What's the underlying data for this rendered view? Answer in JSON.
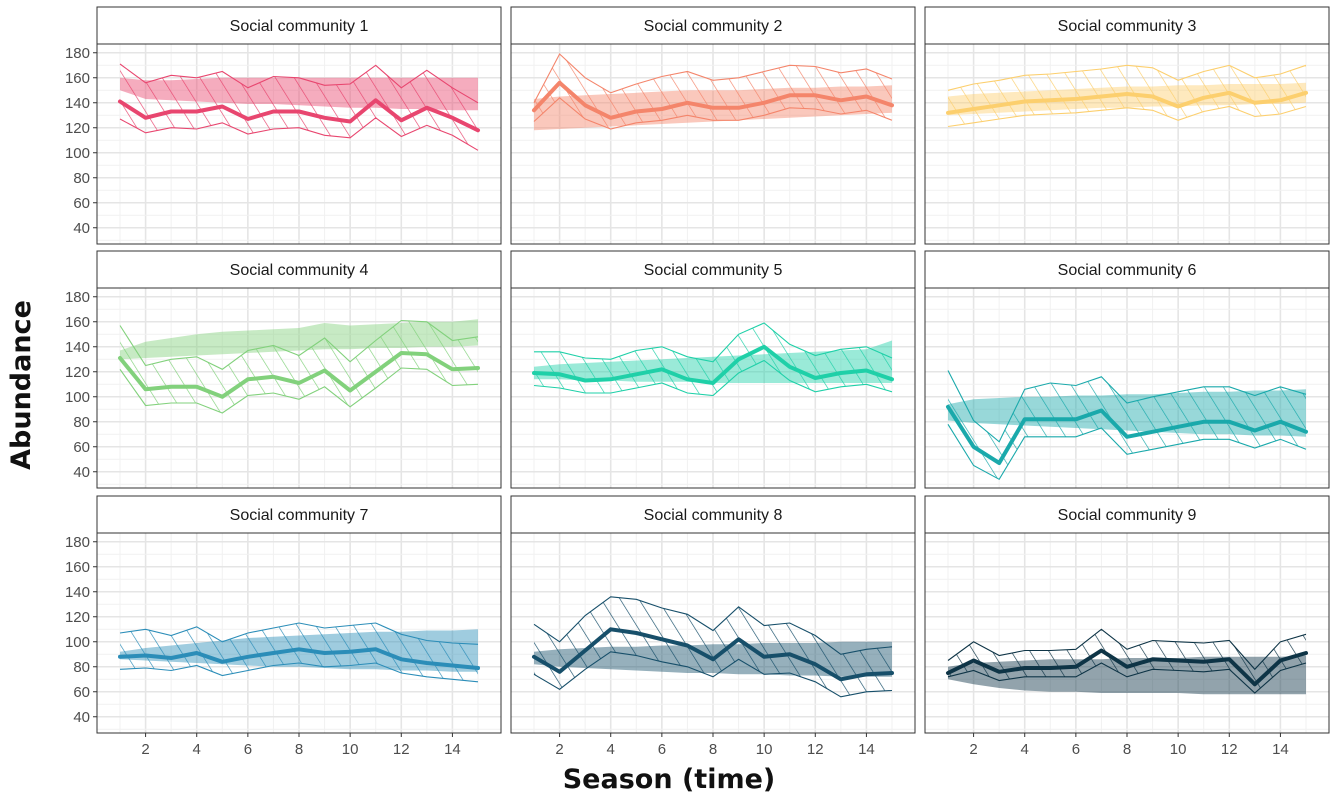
{
  "chart_data": {
    "type": "line",
    "xlabel": "Season (time)",
    "ylabel": "Abundance",
    "xlim": [
      0.1,
      15.9
    ],
    "ylim": [
      27,
      187
    ],
    "x_ticks": [
      2,
      4,
      6,
      8,
      10,
      12,
      14
    ],
    "y_ticks": [
      40,
      60,
      80,
      100,
      120,
      140,
      160,
      180
    ],
    "x": [
      1,
      2,
      3,
      4,
      5,
      6,
      7,
      8,
      9,
      10,
      11,
      12,
      13,
      14,
      15
    ],
    "grid": true,
    "legend": "none",
    "panels": [
      {
        "title": "Social community 1",
        "color": "#e8466f",
        "mean": [
          141,
          128,
          133,
          133,
          137,
          127,
          133,
          133,
          128,
          125,
          142,
          126,
          136,
          128,
          118
        ],
        "hatch_lower": [
          127,
          116,
          120,
          119,
          124,
          115,
          119,
          120,
          114,
          112,
          128,
          113,
          122,
          114,
          102
        ],
        "hatch_upper": [
          171,
          156,
          162,
          160,
          165,
          152,
          161,
          160,
          154,
          155,
          170,
          152,
          166,
          152,
          140
        ],
        "shaded_lower": [
          150,
          143,
          142,
          141,
          140,
          139,
          139,
          138,
          137,
          136,
          136,
          135,
          135,
          134,
          134
        ],
        "shaded_upper": [
          160,
          158,
          158,
          159,
          160,
          160,
          160,
          160,
          160,
          160,
          160,
          160,
          160,
          160,
          160
        ]
      },
      {
        "title": "Social community 2",
        "color": "#f4856b",
        "mean": [
          134,
          156,
          138,
          128,
          133,
          135,
          140,
          136,
          136,
          140,
          146,
          146,
          142,
          145,
          138
        ],
        "hatch_lower": [
          125,
          144,
          127,
          119,
          124,
          126,
          130,
          126,
          126,
          130,
          136,
          135,
          131,
          134,
          126
        ],
        "hatch_upper": [
          140,
          179,
          160,
          148,
          155,
          161,
          165,
          158,
          160,
          165,
          170,
          169,
          164,
          167,
          159
        ],
        "shaded_lower": [
          118,
          119,
          120,
          121,
          122,
          123,
          124,
          125,
          126,
          127,
          128,
          129,
          130,
          131,
          132
        ],
        "shaded_upper": [
          143,
          145,
          146,
          147,
          148,
          149,
          150,
          150,
          150,
          151,
          152,
          152,
          153,
          153,
          154
        ]
      },
      {
        "title": "Social community 3",
        "color": "#fccf6e",
        "mean": [
          132,
          135,
          138,
          141,
          142,
          143,
          145,
          147,
          145,
          137,
          144,
          148,
          140,
          142,
          148
        ],
        "hatch_lower": [
          121,
          124,
          127,
          130,
          131,
          132,
          134,
          136,
          134,
          126,
          133,
          137,
          129,
          131,
          137
        ],
        "hatch_upper": [
          150,
          155,
          158,
          162,
          163,
          165,
          167,
          170,
          168,
          158,
          165,
          170,
          160,
          163,
          170
        ],
        "shaded_lower": [
          130,
          131,
          132,
          133,
          134,
          135,
          136,
          136,
          137,
          137,
          138,
          138,
          139,
          139,
          140
        ],
        "shaded_upper": [
          145,
          147,
          148,
          149,
          150,
          151,
          152,
          153,
          153,
          154,
          154,
          155,
          155,
          155,
          156
        ]
      },
      {
        "title": "Social community 4",
        "color": "#82d17c",
        "mean": [
          131,
          106,
          108,
          108,
          100,
          114,
          116,
          111,
          121,
          105,
          120,
          135,
          134,
          122,
          123
        ],
        "hatch_lower": [
          122,
          93,
          95,
          95,
          87,
          101,
          103,
          98,
          108,
          92,
          107,
          123,
          122,
          109,
          110
        ],
        "hatch_upper": [
          157,
          125,
          130,
          132,
          122,
          137,
          141,
          133,
          147,
          128,
          145,
          161,
          160,
          145,
          148
        ],
        "shaded_lower": [
          130,
          131,
          132,
          133,
          134,
          135,
          136,
          137,
          138,
          138,
          139,
          139,
          140,
          140,
          141
        ],
        "shaded_upper": [
          137,
          144,
          147,
          150,
          152,
          153,
          154,
          155,
          159,
          157,
          158,
          159,
          160,
          160,
          162
        ]
      },
      {
        "title": "Social community 5",
        "color": "#1fd0a8",
        "mean": [
          119,
          118,
          113,
          114,
          118,
          122,
          114,
          111,
          130,
          140,
          124,
          115,
          119,
          121,
          114
        ],
        "hatch_lower": [
          109,
          107,
          103,
          103,
          107,
          111,
          103,
          101,
          119,
          129,
          113,
          104,
          108,
          110,
          104
        ],
        "hatch_upper": [
          136,
          136,
          131,
          130,
          137,
          140,
          132,
          128,
          150,
          159,
          142,
          133,
          138,
          140,
          131
        ],
        "shaded_lower": [
          114,
          114,
          113,
          113,
          112,
          112,
          112,
          111,
          111,
          111,
          111,
          111,
          111,
          111,
          111
        ],
        "shaded_upper": [
          124,
          126,
          127,
          128,
          129,
          130,
          131,
          132,
          133,
          134,
          135,
          136,
          137,
          138,
          145
        ]
      },
      {
        "title": "Social community 6",
        "color": "#1aa9ab",
        "mean": [
          92,
          60,
          47,
          82,
          82,
          82,
          89,
          68,
          72,
          76,
          80,
          80,
          73,
          80,
          72
        ],
        "hatch_lower": [
          78,
          45,
          34,
          68,
          68,
          68,
          75,
          54,
          58,
          62,
          66,
          66,
          59,
          66,
          58
        ],
        "hatch_upper": [
          121,
          81,
          64,
          106,
          111,
          109,
          116,
          95,
          100,
          104,
          108,
          108,
          101,
          108,
          102
        ],
        "shaded_lower": [
          81,
          79,
          78,
          77,
          76,
          75,
          74,
          73,
          72,
          71,
          70,
          70,
          69,
          69,
          68
        ],
        "shaded_upper": [
          94,
          98,
          99,
          100,
          100,
          101,
          101,
          102,
          102,
          103,
          104,
          104,
          105,
          105,
          106
        ]
      },
      {
        "title": "Social community 7",
        "color": "#2b8db8",
        "mean": [
          88,
          89,
          87,
          91,
          84,
          88,
          91,
          94,
          91,
          92,
          94,
          86,
          83,
          81,
          79
        ],
        "hatch_lower": [
          78,
          79,
          77,
          81,
          73,
          77,
          81,
          83,
          80,
          81,
          83,
          75,
          72,
          70,
          68
        ],
        "hatch_upper": [
          107,
          110,
          105,
          112,
          100,
          107,
          111,
          115,
          111,
          113,
          115,
          106,
          101,
          99,
          98
        ],
        "shaded_lower": [
          86,
          85,
          84,
          83,
          82,
          81,
          80,
          80,
          79,
          78,
          78,
          77,
          77,
          76,
          76
        ],
        "shaded_upper": [
          92,
          95,
          97,
          99,
          101,
          103,
          104,
          105,
          106,
          107,
          108,
          108,
          109,
          109,
          110
        ]
      },
      {
        "title": "Social community 8",
        "color": "#174f6a",
        "mean": [
          88,
          76,
          93,
          110,
          107,
          102,
          97,
          86,
          102,
          88,
          90,
          82,
          70,
          74,
          75
        ],
        "hatch_lower": [
          74,
          62,
          78,
          92,
          89,
          84,
          80,
          72,
          86,
          74,
          75,
          68,
          56,
          60,
          61
        ],
        "hatch_upper": [
          114,
          100,
          121,
          136,
          134,
          127,
          122,
          109,
          128,
          113,
          115,
          105,
          90,
          94,
          96
        ],
        "shaded_lower": [
          82,
          80,
          79,
          78,
          77,
          76,
          75,
          75,
          74,
          74,
          73,
          73,
          72,
          72,
          72
        ],
        "shaded_upper": [
          92,
          94,
          95,
          96,
          96,
          97,
          97,
          98,
          98,
          99,
          99,
          99,
          100,
          100,
          100
        ]
      },
      {
        "title": "Social community 9",
        "color": "#0e3446",
        "mean": [
          75,
          85,
          76,
          79,
          79,
          80,
          93,
          80,
          86,
          85,
          84,
          86,
          66,
          85,
          91
        ],
        "hatch_lower": [
          72,
          77,
          69,
          72,
          72,
          72,
          83,
          72,
          78,
          77,
          76,
          78,
          59,
          77,
          83
        ],
        "hatch_upper": [
          85,
          100,
          89,
          93,
          93,
          94,
          110,
          94,
          101,
          100,
          99,
          101,
          78,
          100,
          106
        ],
        "shaded_lower": [
          70,
          66,
          63,
          61,
          60,
          60,
          59,
          59,
          59,
          59,
          58,
          58,
          58,
          58,
          58
        ],
        "shaded_upper": [
          80,
          83,
          84,
          85,
          86,
          86,
          86,
          87,
          87,
          87,
          88,
          88,
          88,
          88,
          89
        ]
      }
    ]
  }
}
